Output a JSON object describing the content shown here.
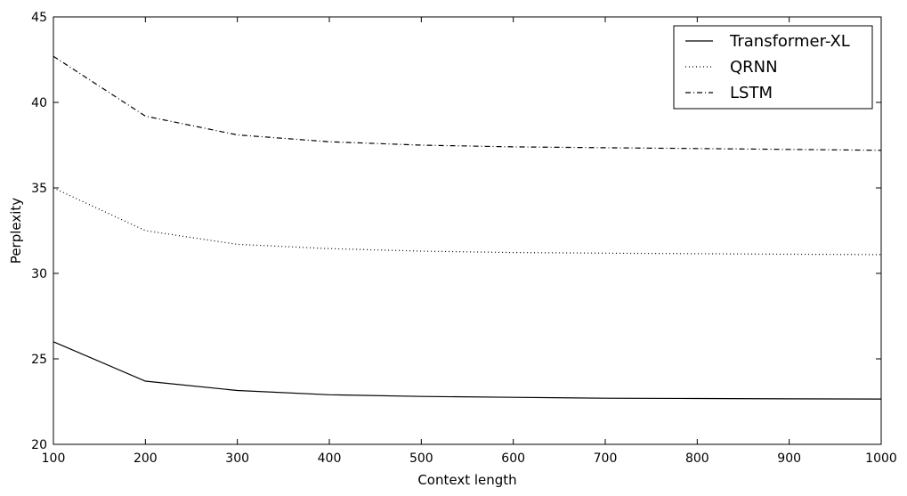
{
  "chart_data": {
    "type": "line",
    "xlabel": "Context length",
    "ylabel": "Perplexity",
    "xlim": [
      100,
      1000
    ],
    "ylim": [
      20,
      45
    ],
    "xticks": [
      100,
      200,
      300,
      400,
      500,
      600,
      700,
      800,
      900,
      1000
    ],
    "yticks": [
      20,
      25,
      30,
      35,
      40,
      45
    ],
    "grid": false,
    "legend_position": "top-right",
    "x": [
      100,
      200,
      300,
      400,
      500,
      600,
      700,
      800,
      900,
      1000
    ],
    "series": [
      {
        "name": "Transformer-XL",
        "style": "solid",
        "color": "#000000",
        "values": [
          26.0,
          23.7,
          23.15,
          22.9,
          22.8,
          22.75,
          22.7,
          22.68,
          22.66,
          22.65
        ]
      },
      {
        "name": "QRNN",
        "style": "dotted",
        "color": "#000000",
        "values": [
          35.0,
          32.5,
          31.7,
          31.45,
          31.3,
          31.22,
          31.18,
          31.15,
          31.12,
          31.1
        ]
      },
      {
        "name": "LSTM",
        "style": "dashdot",
        "color": "#000000",
        "values": [
          42.7,
          39.2,
          38.1,
          37.7,
          37.5,
          37.4,
          37.35,
          37.3,
          37.25,
          37.2
        ]
      }
    ]
  }
}
